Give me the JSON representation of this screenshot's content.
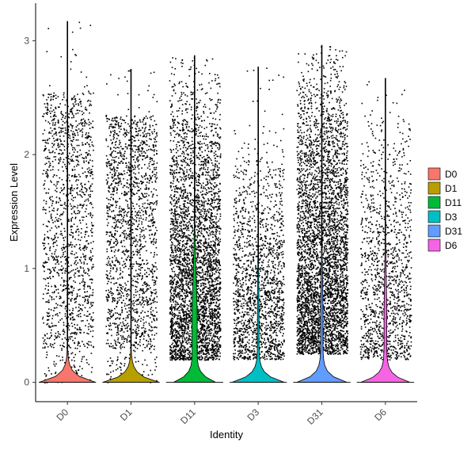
{
  "chart_data": {
    "type": "violin",
    "xlabel": "Identity",
    "ylabel": "Expression Level",
    "ylim": [
      -0.17,
      3.33
    ],
    "yticks": [
      0,
      1,
      2,
      3
    ],
    "categories": [
      "D0",
      "D1",
      "D11",
      "D3",
      "D31",
      "D6"
    ],
    "series": [
      {
        "name": "D0",
        "color": "#F8766D",
        "max": 3.17,
        "zero_fraction": 0.99,
        "points": 1500,
        "dist": "uniform",
        "low": 0.3,
        "high": 2.55
      },
      {
        "name": "D1",
        "color": "#B79F00",
        "max": 2.75,
        "zero_fraction": 0.99,
        "points": 1800,
        "dist": "uniform",
        "low": 0.3,
        "high": 2.35
      },
      {
        "name": "D11",
        "color": "#00BA38",
        "max": 2.87,
        "zero_fraction": 0.74,
        "points": 3800,
        "dist": "skewed",
        "low": 0.2,
        "high": 2.6
      },
      {
        "name": "D3",
        "color": "#00BFC4",
        "max": 2.77,
        "zero_fraction": 0.92,
        "points": 1700,
        "dist": "skewed",
        "low": 0.2,
        "high": 2.1
      },
      {
        "name": "D31",
        "color": "#619CFF",
        "max": 2.96,
        "zero_fraction": 0.88,
        "points": 4300,
        "dist": "skewed",
        "low": 0.25,
        "high": 2.7
      },
      {
        "name": "D6",
        "color": "#F564E3",
        "max": 2.67,
        "zero_fraction": 0.86,
        "points": 1300,
        "dist": "skewed",
        "low": 0.2,
        "high": 2.3
      }
    ],
    "legend": {
      "position": "right",
      "entries": [
        "D0",
        "D1",
        "D11",
        "D3",
        "D31",
        "D6"
      ]
    },
    "grid": false
  }
}
